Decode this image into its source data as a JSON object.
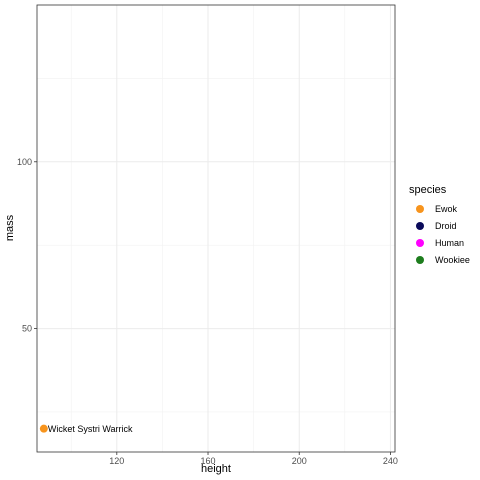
{
  "chart_data": {
    "type": "scatter",
    "xlabel": "height",
    "ylabel": "mass",
    "xlim": [
      85,
      242
    ],
    "ylim": [
      13,
      147
    ],
    "x_ticks": [
      120,
      160,
      200,
      240
    ],
    "y_ticks": [
      50,
      100
    ],
    "grid": true,
    "legend": {
      "title": "species",
      "placement": "right",
      "entries": [
        {
          "name": "Ewok",
          "color": "#F7941D"
        },
        {
          "name": "Droid",
          "color": "#0A0A5A"
        },
        {
          "name": "Human",
          "color": "#FF00FF"
        },
        {
          "name": "Wookiee",
          "color": "#1E7D1E"
        }
      ]
    },
    "points": [
      {
        "x": 88,
        "y": 20,
        "species": "Ewok",
        "label": "Wicket Systri Warrick"
      }
    ]
  }
}
